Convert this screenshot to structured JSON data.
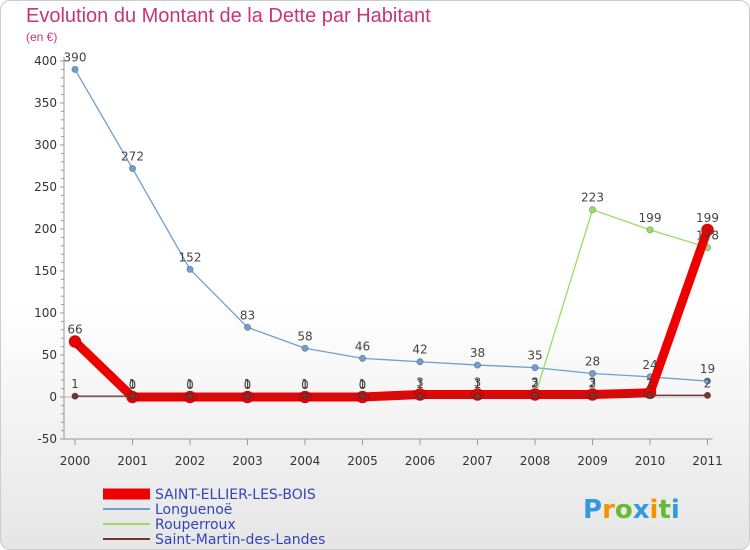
{
  "chart_data": {
    "type": "line",
    "title": "Evolution du Montant de la Dette par Habitant",
    "subtitle": "(en €)",
    "xlabel": "",
    "ylabel": "",
    "categories": [
      "2000",
      "2001",
      "2002",
      "2003",
      "2004",
      "2005",
      "2006",
      "2007",
      "2008",
      "2009",
      "2010",
      "2011"
    ],
    "yticks": [
      "-50",
      "0",
      "50",
      "100",
      "150",
      "200",
      "250",
      "300",
      "350",
      "400"
    ],
    "ylim": [
      -50,
      400
    ],
    "grid": false,
    "legend_position": "bottom-left",
    "series": [
      {
        "name": "SAINT-ELLIER-LES-BOIS",
        "color": "#ee0000",
        "values": [
          66,
          0,
          0,
          0,
          0,
          0,
          3,
          3,
          3,
          3,
          5,
          199
        ],
        "labels": [
          "66",
          "0",
          "0",
          "0",
          "0",
          "0",
          "3",
          "3",
          "3",
          "3",
          "",
          "199"
        ]
      },
      {
        "name": "Longuenoë",
        "color": "#6f9fcf",
        "values": [
          390,
          272,
          152,
          83,
          58,
          46,
          42,
          38,
          35,
          28,
          24,
          19
        ],
        "labels": [
          "390",
          "272",
          "152",
          "83",
          "58",
          "46",
          "42",
          "38",
          "35",
          "28",
          "24",
          "19"
        ]
      },
      {
        "name": "Rouperroux",
        "color": "#99dd66",
        "values": [
          null,
          null,
          null,
          null,
          null,
          null,
          null,
          null,
          1,
          223,
          199,
          178
        ],
        "labels": [
          "",
          "",
          "",
          "",
          "",
          "",
          "",
          "",
          "",
          "223",
          "199",
          "178"
        ]
      },
      {
        "name": "Saint-Martin-des-Landes",
        "color": "#7a3333",
        "values": [
          1,
          1,
          1,
          1,
          1,
          1,
          1,
          1,
          2,
          2,
          2,
          2
        ],
        "labels": [
          "1",
          "1",
          "1",
          "1",
          "1",
          "1",
          "1",
          "1",
          "2",
          "2",
          "2",
          "2"
        ]
      }
    ]
  },
  "title_color": "#cc3377",
  "axis_color": "#999999",
  "logo": {
    "letters": [
      "P",
      "r",
      "o",
      "x",
      "i",
      "t",
      "i"
    ],
    "colors": [
      "#3399dd",
      "#f29400",
      "#66bb33",
      "#3399dd",
      "#f29400",
      "#66bb33",
      "#3399dd"
    ]
  }
}
